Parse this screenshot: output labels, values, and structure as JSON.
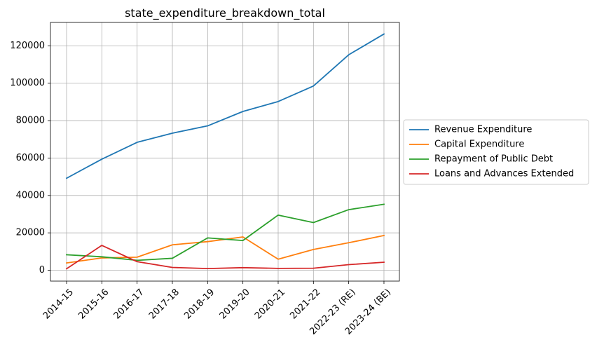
{
  "chart_data": {
    "type": "line",
    "title": "state_expenditure_breakdown_total",
    "xlabel": "",
    "ylabel": "",
    "categories": [
      "2014-15",
      "2015-16",
      "2016-17",
      "2017-18",
      "2018-19",
      "2019-20",
      "2020-21",
      "2021-22",
      "2022-23 (RE)",
      "2023-24 (BE)"
    ],
    "ylim": [
      -5800,
      132500
    ],
    "yticks": [
      0,
      20000,
      40000,
      60000,
      80000,
      100000,
      120000
    ],
    "grid": true,
    "legend_position": "center-right outside",
    "series": [
      {
        "name": "Revenue Expenditure",
        "color": "#1f77b4",
        "values": [
          49200,
          59400,
          68400,
          73300,
          77200,
          84900,
          90200,
          98500,
          115200,
          126300
        ]
      },
      {
        "name": "Capital Expenditure",
        "color": "#ff7f0e",
        "values": [
          3900,
          6600,
          7000,
          13600,
          15300,
          17800,
          5900,
          11100,
          14700,
          18600
        ]
      },
      {
        "name": "Repayment of Public Debt",
        "color": "#2ca02c",
        "values": [
          8300,
          7200,
          5300,
          6400,
          17300,
          15900,
          29500,
          25500,
          32400,
          35300
        ]
      },
      {
        "name": "Loans and Advances Extended",
        "color": "#d62728",
        "values": [
          800,
          13300,
          4600,
          1500,
          900,
          1400,
          1000,
          1100,
          3000,
          4300
        ]
      }
    ]
  }
}
